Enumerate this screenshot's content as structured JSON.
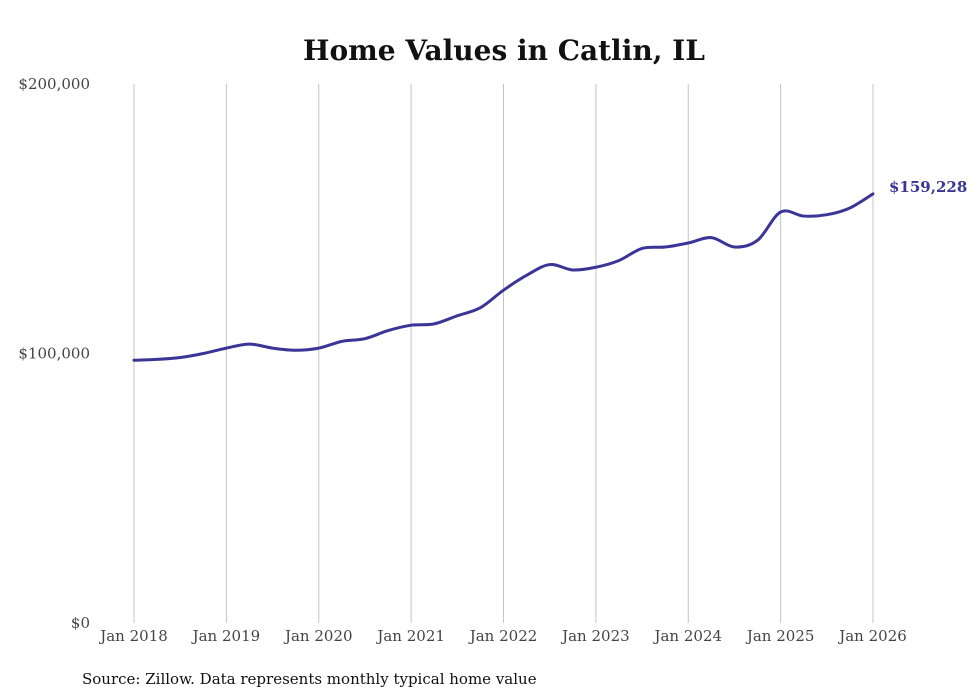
{
  "chart_data": {
    "type": "line",
    "title": "Home Values in Catlin, IL",
    "xlabel": "",
    "ylabel": "",
    "ylim": [
      0,
      200000
    ],
    "y_ticks": [
      {
        "value": 0,
        "label": "$0"
      },
      {
        "value": 100000,
        "label": "$100,000"
      },
      {
        "value": 200000,
        "label": "$200,000"
      }
    ],
    "x_ticks": [
      {
        "value": 2018,
        "label": "Jan 2018"
      },
      {
        "value": 2019,
        "label": "Jan 2019"
      },
      {
        "value": 2020,
        "label": "Jan 2020"
      },
      {
        "value": 2021,
        "label": "Jan 2021"
      },
      {
        "value": 2022,
        "label": "Jan 2022"
      },
      {
        "value": 2023,
        "label": "Jan 2023"
      },
      {
        "value": 2024,
        "label": "Jan 2024"
      },
      {
        "value": 2025,
        "label": "Jan 2025"
      },
      {
        "value": 2026,
        "label": "Jan 2026"
      }
    ],
    "xlim": [
      2018,
      2026
    ],
    "grid": "vertical",
    "series": [
      {
        "name": "Typical home value",
        "color": "#3b3597",
        "x": [
          2018.0,
          2018.25,
          2018.5,
          2018.75,
          2019.0,
          2019.25,
          2019.5,
          2019.75,
          2020.0,
          2020.25,
          2020.5,
          2020.75,
          2021.0,
          2021.25,
          2021.5,
          2021.75,
          2022.0,
          2022.25,
          2022.5,
          2022.75,
          2023.0,
          2023.25,
          2023.5,
          2023.75,
          2024.0,
          2024.25,
          2024.5,
          2024.75,
          2025.0,
          2025.25,
          2025.5,
          2025.75,
          2026.0
        ],
        "values": [
          97500,
          97800,
          98500,
          100000,
          102000,
          103500,
          102000,
          101200,
          102000,
          104500,
          105500,
          108500,
          110500,
          111000,
          114000,
          117000,
          123500,
          129000,
          133000,
          131000,
          132000,
          134500,
          139000,
          139500,
          141000,
          143000,
          139500,
          142000,
          152500,
          151000,
          151500,
          154000,
          159228
        ]
      }
    ],
    "end_label": "$159,228",
    "source": "Source: Zillow. Data represents monthly typical home value"
  }
}
